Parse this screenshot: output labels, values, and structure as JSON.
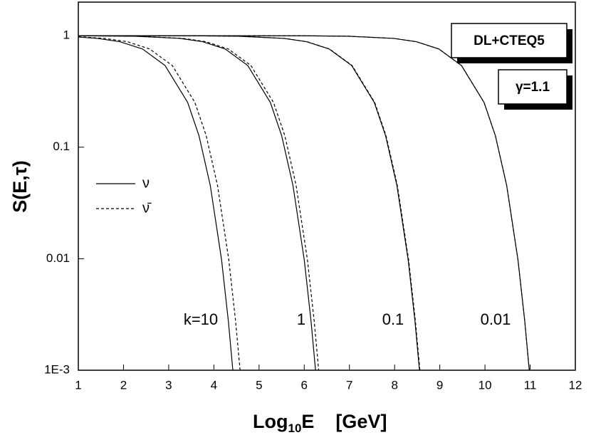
{
  "chart_data": {
    "type": "line",
    "x_label": {
      "main": "Log",
      "sub": "10",
      "rest": "E    [GeV]"
    },
    "y_label": "S(E,τ)",
    "xlim": [
      1,
      12
    ],
    "xticks": [
      1,
      2,
      3,
      4,
      5,
      6,
      7,
      8,
      9,
      10,
      11,
      12
    ],
    "ylim": [
      0.001,
      2
    ],
    "log_y": true,
    "yticks": [
      1,
      0.1,
      0.01,
      {
        "value": 0.001,
        "label": "1E-3"
      }
    ],
    "legend_position": "left",
    "boxes": [
      "DL+CTEQ5",
      "γ=1.1"
    ],
    "curve_labels": [
      "k=10",
      "1",
      "0.1",
      "0.01"
    ],
    "series": [
      {
        "name": "ν",
        "color": "#000000",
        "line_style": "solid",
        "x": [
          1,
          1.42,
          1.92,
          2.42,
          2.92,
          3.42,
          3.67,
          3.92,
          4.17,
          4.32,
          4.42
        ],
        "values": [
          0.972,
          0.946,
          0.884,
          0.76,
          0.54,
          0.252,
          0.127,
          0.0455,
          0.0098,
          0.00277,
          0.001
        ]
      },
      {
        "name": "ν̄",
        "color": "#000000",
        "line_style": "dashed",
        "x": [
          1,
          1.58,
          2.08,
          2.58,
          3.08,
          3.58,
          3.83,
          4.08,
          4.33,
          4.48,
          4.58
        ],
        "values": [
          0.979,
          0.946,
          0.884,
          0.76,
          0.54,
          0.252,
          0.127,
          0.0455,
          0.0098,
          0.00277,
          0.001
        ]
      },
      {
        "name": "ν",
        "color": "#000000",
        "line_style": "solid",
        "x": [
          1,
          2.25,
          3.25,
          3.75,
          4.25,
          4.75,
          5.25,
          5.5,
          5.75,
          6,
          6.15,
          6.25
        ],
        "values": [
          0.999,
          0.989,
          0.946,
          0.884,
          0.76,
          0.54,
          0.252,
          0.127,
          0.0455,
          0.0098,
          0.00277,
          0.001
        ]
      },
      {
        "name": "ν̄",
        "color": "#000000",
        "line_style": "dashed",
        "x": [
          1,
          2.32,
          3.32,
          3.82,
          4.32,
          4.82,
          5.32,
          5.57,
          5.82,
          6.07,
          6.22,
          6.32
        ],
        "values": [
          0.999,
          0.989,
          0.946,
          0.884,
          0.76,
          0.54,
          0.252,
          0.127,
          0.0455,
          0.0098,
          0.00277,
          0.001
        ]
      },
      {
        "name": "ν",
        "color": "#000000",
        "line_style": "solid",
        "x": [
          1,
          3.55,
          4.55,
          5.55,
          6.05,
          6.55,
          7.05,
          7.55,
          7.8,
          8.05,
          8.3,
          8.45,
          8.55
        ],
        "values": [
          1,
          0.998,
          0.989,
          0.946,
          0.884,
          0.76,
          0.54,
          0.252,
          0.127,
          0.0455,
          0.0098,
          0.00277,
          0.001
        ]
      },
      {
        "name": "ν̄",
        "color": "#000000",
        "line_style": "dashed",
        "x": [
          1,
          3.56,
          4.56,
          5.56,
          6.06,
          6.56,
          7.06,
          7.56,
          7.81,
          8.06,
          8.31,
          8.46,
          8.56
        ],
        "values": [
          1,
          0.998,
          0.989,
          0.946,
          0.884,
          0.76,
          0.54,
          0.252,
          0.127,
          0.0455,
          0.0098,
          0.00277,
          0.001
        ]
      },
      {
        "name": "ν",
        "color": "#000000",
        "line_style": "solid",
        "x": [
          1,
          5.98,
          6.98,
          7.98,
          8.48,
          8.98,
          9.48,
          9.98,
          10.23,
          10.48,
          10.73,
          10.88,
          10.98
        ],
        "values": [
          1,
          0.998,
          0.989,
          0.946,
          0.884,
          0.76,
          0.54,
          0.252,
          0.127,
          0.0455,
          0.0098,
          0.00277,
          0.001
        ]
      },
      {
        "name": "ν̄",
        "color": "#000000",
        "line_style": "dashed",
        "x": [
          1,
          5.98,
          6.98,
          7.98,
          8.48,
          8.98,
          9.48,
          9.98,
          10.23,
          10.48,
          10.73,
          10.88,
          10.98
        ],
        "values": [
          1,
          0.998,
          0.989,
          0.946,
          0.884,
          0.76,
          0.54,
          0.252,
          0.127,
          0.0455,
          0.0098,
          0.00277,
          0.001
        ]
      }
    ]
  }
}
